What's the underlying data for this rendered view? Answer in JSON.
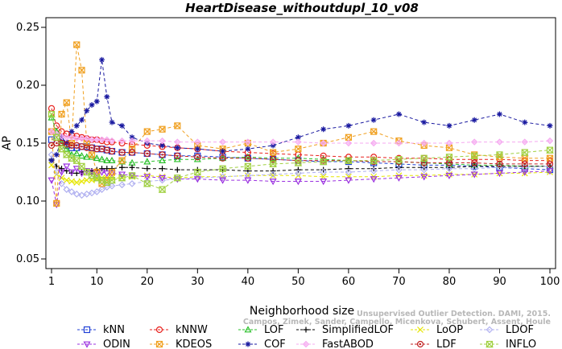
{
  "chart_data": {
    "type": "line",
    "title": "HeartDisease_withoutdupl_10_v08",
    "xlabel": "Neighborhood size",
    "ylabel": "AP",
    "xlim": [
      1,
      100
    ],
    "ylim": [
      0.05,
      0.25
    ],
    "x_ticks": [
      1,
      10,
      20,
      30,
      40,
      50,
      60,
      70,
      80,
      90,
      100
    ],
    "y_ticks": [
      0.05,
      0.1,
      0.15,
      0.2,
      0.25
    ],
    "y_tick_labels": [
      "0.05",
      "0.10",
      "0.15",
      "0.20",
      "0.25"
    ],
    "grid": false,
    "legend_position": "bottom",
    "x": [
      1,
      2,
      3,
      4,
      5,
      6,
      7,
      8,
      9,
      10,
      11,
      12,
      13,
      15,
      17,
      20,
      23,
      26,
      30,
      35,
      40,
      45,
      50,
      55,
      60,
      65,
      70,
      75,
      80,
      85,
      90,
      95,
      100
    ],
    "series": [
      {
        "name": "kNN",
        "color": "#1f3fd6",
        "marker": "square",
        "values": [
          0.153,
          0.155,
          0.15,
          0.148,
          0.146,
          0.146,
          0.147,
          0.147,
          0.146,
          0.145,
          0.145,
          0.144,
          0.143,
          0.142,
          0.142,
          0.141,
          0.14,
          0.139,
          0.139,
          0.138,
          0.137,
          0.136,
          0.135,
          0.134,
          0.134,
          0.133,
          0.132,
          0.131,
          0.131,
          0.13,
          0.129,
          0.128,
          0.127
        ]
      },
      {
        "name": "kNNW",
        "color": "#e8201c",
        "marker": "circle",
        "values": [
          0.18,
          0.165,
          0.16,
          0.158,
          0.157,
          0.156,
          0.155,
          0.154,
          0.153,
          0.153,
          0.152,
          0.151,
          0.151,
          0.15,
          0.149,
          0.148,
          0.147,
          0.146,
          0.145,
          0.143,
          0.142,
          0.141,
          0.14,
          0.139,
          0.138,
          0.138,
          0.137,
          0.137,
          0.136,
          0.136,
          0.136,
          0.135,
          0.135
        ]
      },
      {
        "name": "LOF",
        "color": "#2bc02b",
        "marker": "triangle",
        "values": [
          0.172,
          0.16,
          0.15,
          0.145,
          0.14,
          0.141,
          0.139,
          0.138,
          0.138,
          0.137,
          0.136,
          0.135,
          0.135,
          0.134,
          0.133,
          0.134,
          0.135,
          0.136,
          0.136,
          0.137,
          0.138,
          0.137,
          0.137,
          0.136,
          0.135,
          0.134,
          0.134,
          0.133,
          0.132,
          0.131,
          0.131,
          0.13,
          0.13
        ]
      },
      {
        "name": "SimplifiedLOF",
        "color": "#000000",
        "marker": "plus",
        "values": [
          0.136,
          0.13,
          0.128,
          0.126,
          0.124,
          0.124,
          0.125,
          0.126,
          0.126,
          0.127,
          0.128,
          0.128,
          0.128,
          0.129,
          0.129,
          0.128,
          0.128,
          0.127,
          0.127,
          0.127,
          0.126,
          0.126,
          0.127,
          0.127,
          0.128,
          0.128,
          0.129,
          0.129,
          0.129,
          0.13,
          0.13,
          0.13,
          0.13
        ]
      },
      {
        "name": "LoOP",
        "color": "#e6e600",
        "marker": "x",
        "values": [
          0.131,
          0.123,
          0.12,
          0.118,
          0.117,
          0.116,
          0.117,
          0.118,
          0.118,
          0.119,
          0.12,
          0.12,
          0.12,
          0.12,
          0.121,
          0.122,
          0.121,
          0.12,
          0.121,
          0.121,
          0.122,
          0.122,
          0.122,
          0.121,
          0.121,
          0.121,
          0.122,
          0.122,
          0.123,
          0.123,
          0.124,
          0.124,
          0.125
        ]
      },
      {
        "name": "LDOF",
        "color": "#b0b0f0",
        "marker": "diamond",
        "values": [
          0.14,
          0.125,
          0.115,
          0.11,
          0.108,
          0.106,
          0.105,
          0.106,
          0.107,
          0.108,
          0.11,
          0.112,
          0.113,
          0.114,
          0.115,
          0.117,
          0.118,
          0.119,
          0.12,
          0.121,
          0.122,
          0.123,
          0.124,
          0.125,
          0.125,
          0.126,
          0.127,
          0.127,
          0.128,
          0.128,
          0.129,
          0.129,
          0.13
        ]
      },
      {
        "name": "ODIN",
        "color": "#9a30e0",
        "marker": "triangle-down",
        "values": [
          0.118,
          0.097,
          0.125,
          0.13,
          0.125,
          0.128,
          0.124,
          0.126,
          0.125,
          0.124,
          0.125,
          0.124,
          0.124,
          0.123,
          0.122,
          0.121,
          0.12,
          0.119,
          0.119,
          0.118,
          0.118,
          0.117,
          0.117,
          0.117,
          0.118,
          0.119,
          0.12,
          0.121,
          0.122,
          0.123,
          0.124,
          0.125,
          0.126
        ]
      },
      {
        "name": "KDEOS",
        "color": "#f0a020",
        "marker": "box-x",
        "values": [
          0.16,
          0.098,
          0.175,
          0.185,
          0.15,
          0.235,
          0.213,
          0.15,
          0.14,
          0.125,
          0.115,
          0.118,
          0.125,
          0.135,
          0.145,
          0.16,
          0.162,
          0.165,
          0.148,
          0.145,
          0.15,
          0.142,
          0.145,
          0.15,
          0.155,
          0.16,
          0.152,
          0.148,
          0.146,
          0.14,
          0.138,
          0.137,
          0.137
        ]
      },
      {
        "name": "COF",
        "color": "#1a1aa0",
        "marker": "star",
        "values": [
          0.135,
          0.14,
          0.155,
          0.15,
          0.16,
          0.165,
          0.17,
          0.178,
          0.183,
          0.186,
          0.222,
          0.19,
          0.168,
          0.165,
          0.155,
          0.15,
          0.148,
          0.146,
          0.145,
          0.143,
          0.145,
          0.148,
          0.155,
          0.162,
          0.165,
          0.17,
          0.175,
          0.168,
          0.165,
          0.17,
          0.175,
          0.168,
          0.165
        ]
      },
      {
        "name": "FastABOD",
        "color": "#f5a8f0",
        "marker": "diamond-fill",
        "values": [
          0.16,
          0.158,
          0.156,
          0.155,
          0.155,
          0.154,
          0.154,
          0.154,
          0.153,
          0.153,
          0.153,
          0.153,
          0.152,
          0.152,
          0.152,
          0.152,
          0.152,
          0.151,
          0.151,
          0.151,
          0.151,
          0.151,
          0.151,
          0.15,
          0.15,
          0.15,
          0.15,
          0.15,
          0.15,
          0.151,
          0.151,
          0.151,
          0.152
        ]
      },
      {
        "name": "LDF",
        "color": "#c02020",
        "marker": "circle-dot",
        "values": [
          0.148,
          0.15,
          0.15,
          0.149,
          0.148,
          0.148,
          0.147,
          0.146,
          0.146,
          0.145,
          0.145,
          0.144,
          0.143,
          0.142,
          0.142,
          0.141,
          0.14,
          0.139,
          0.138,
          0.137,
          0.137,
          0.136,
          0.135,
          0.135,
          0.135,
          0.134,
          0.134,
          0.133,
          0.133,
          0.133,
          0.132,
          0.132,
          0.132
        ]
      },
      {
        "name": "INFLO",
        "color": "#a0d040",
        "marker": "hourglass",
        "values": [
          0.175,
          0.155,
          0.145,
          0.14,
          0.137,
          0.135,
          0.13,
          0.125,
          0.122,
          0.12,
          0.118,
          0.116,
          0.118,
          0.12,
          0.122,
          0.115,
          0.11,
          0.12,
          0.125,
          0.128,
          0.13,
          0.132,
          0.133,
          0.134,
          0.135,
          0.135,
          0.136,
          0.137,
          0.138,
          0.139,
          0.14,
          0.142,
          0.144
        ]
      }
    ]
  },
  "watermark": {
    "line1": "Unsupervised Outlier Detection. DAMI, 2015.",
    "line2": "Campos, Zimek, Sander, Campello, Micenkova, Schubert, Assent, Houle"
  }
}
